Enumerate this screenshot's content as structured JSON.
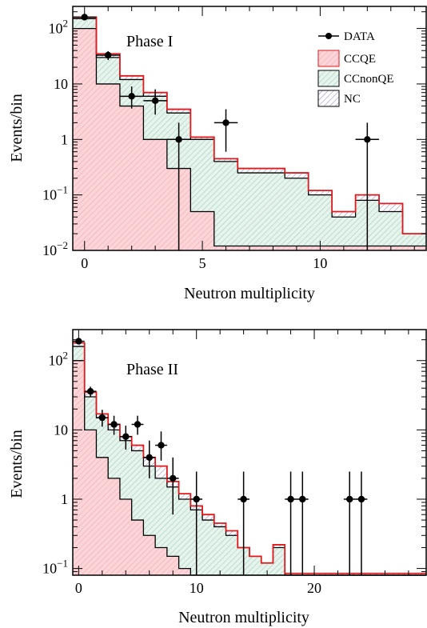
{
  "colors": {
    "ccqe_fill": "#fbd5d8",
    "ccqe_hatch": "#f4a9b0",
    "ccnonqe_fill": "#e7f4ee",
    "ccnonqe_hatch": "#9fcfb6",
    "nc_hatch": "#9a8fc4",
    "total_line": "#e0191d",
    "data": "#000000"
  },
  "chart_data": [
    {
      "type": "histogram",
      "phase_label": "Phase I",
      "xlabel": "Neutron multiplicity",
      "ylabel": "Events/bin",
      "yscale": "log",
      "xlim": [
        -0.5,
        14.5
      ],
      "ylim": [
        0.01,
        250
      ],
      "x_ticks": [
        0,
        5,
        10
      ],
      "y_ticks": [
        {
          "value": 0.01,
          "base": "10",
          "exp": "−2"
        },
        {
          "value": 0.1,
          "base": "10",
          "exp": "−1"
        },
        {
          "value": 1,
          "text": "1"
        },
        {
          "value": 10,
          "text": "10"
        },
        {
          "value": 100,
          "base": "10",
          "exp": "2"
        }
      ],
      "legend": {
        "position": "top-right",
        "entries": [
          {
            "key": "data",
            "label": "DATA"
          },
          {
            "key": "ccqe",
            "label": "CCQE"
          },
          {
            "key": "ccnonqe",
            "label": "CCnonQE"
          },
          {
            "key": "nc",
            "label": "NC"
          }
        ]
      },
      "bin_edges": [
        -0.5,
        0.5,
        1.5,
        2.5,
        3.5,
        4.5,
        5.5,
        6.5,
        7.5,
        8.5,
        9.5,
        10.5,
        11.5,
        12.5,
        13.5,
        14.5
      ],
      "ccqe": [
        100,
        10,
        4,
        1,
        0.3,
        0.05,
        0.012,
        0.012,
        0.012,
        0.012,
        0.012,
        0.012,
        0.012,
        0.012,
        0.012
      ],
      "ccqe_plus_ccnonqe": [
        150,
        30,
        12,
        6,
        3,
        1,
        0.4,
        0.25,
        0.25,
        0.2,
        0.1,
        0.04,
        0.08,
        0.05,
        0.02
      ],
      "total": [
        160,
        35,
        14,
        7,
        3.5,
        1.1,
        0.45,
        0.3,
        0.3,
        0.25,
        0.12,
        0.05,
        0.1,
        0.07,
        0.02
      ],
      "data": {
        "x": [
          0,
          1,
          2,
          3,
          4,
          6,
          12
        ],
        "y": [
          160,
          33,
          6,
          5,
          1,
          2,
          1
        ],
        "yerr_low": [
          13,
          6,
          2.4,
          2.2,
          1,
          1.4,
          1
        ],
        "yerr_high": [
          13,
          6,
          3,
          3,
          1,
          1.5,
          1
        ]
      }
    },
    {
      "type": "histogram",
      "phase_label": "Phase II",
      "xlabel": "Neutron multiplicity",
      "ylabel": "Events/bin",
      "yscale": "log",
      "xlim": [
        -0.5,
        29.5
      ],
      "ylim": [
        0.08,
        280
      ],
      "x_ticks": [
        0,
        10,
        20
      ],
      "y_ticks": [
        {
          "value": 0.1,
          "base": "10",
          "exp": "−1"
        },
        {
          "value": 1,
          "text": "1"
        },
        {
          "value": 10,
          "text": "10"
        },
        {
          "value": 100,
          "base": "10",
          "exp": "2"
        }
      ],
      "bin_edges": [
        -0.5,
        0.5,
        1.5,
        2.5,
        3.5,
        4.5,
        5.5,
        6.5,
        7.5,
        8.5,
        9.5,
        10.5,
        11.5,
        12.5,
        13.5,
        14.5,
        15.5,
        16.5,
        17.5,
        18.5,
        19.5,
        20.5,
        21.5,
        22.5,
        23.5,
        24.5,
        25.5,
        26.5,
        27.5,
        28.5,
        29.5
      ],
      "ccqe": [
        100,
        10,
        4,
        2,
        1,
        0.5,
        0.3,
        0.2,
        0.15,
        0.1,
        0.07,
        0.07,
        0.07,
        0.07,
        0.07,
        0.07,
        0.07,
        0.07,
        0.07,
        0.07,
        0.07,
        0.07,
        0.07,
        0.07,
        0.07,
        0.07,
        0.07,
        0.07,
        0.07,
        0.07
      ],
      "ccqe_plus_ccnonqe": [
        160,
        30,
        15,
        10,
        7,
        5,
        3,
        2,
        1.5,
        1,
        0.7,
        0.5,
        0.4,
        0.3,
        0.2,
        0.15,
        0.12,
        0.2,
        0.078,
        0.078,
        0.078,
        0.078,
        0.078,
        0.078,
        0.078,
        0.078,
        0.078,
        0.078,
        0.078,
        0.078
      ],
      "total": [
        180,
        35,
        17,
        12,
        8,
        6,
        4,
        3,
        1.8,
        1.2,
        0.8,
        0.6,
        0.45,
        0.35,
        0.2,
        0.15,
        0.12,
        0.22,
        0.085,
        0.085,
        0.085,
        0.085,
        0.085,
        0.085,
        0.085,
        0.085,
        0.085,
        0.085,
        0.085,
        0.085
      ],
      "data": {
        "x": [
          0,
          1,
          2,
          3,
          4,
          5,
          6,
          7,
          8,
          10,
          14,
          18,
          19,
          23,
          24
        ],
        "y": [
          190,
          36,
          15,
          12,
          8,
          12,
          4,
          6,
          2,
          1,
          1,
          1,
          1,
          1,
          1
        ],
        "yerr_low": [
          14,
          6,
          3.9,
          3.5,
          2.8,
          3.5,
          2,
          2.4,
          1.4,
          1,
          1,
          1,
          1,
          1,
          1
        ],
        "yerr_high": [
          14,
          6,
          4.5,
          4,
          3.5,
          4,
          3,
          3.5,
          2,
          1.5,
          1.5,
          1.5,
          1.5,
          1.5,
          1.5
        ]
      }
    }
  ]
}
